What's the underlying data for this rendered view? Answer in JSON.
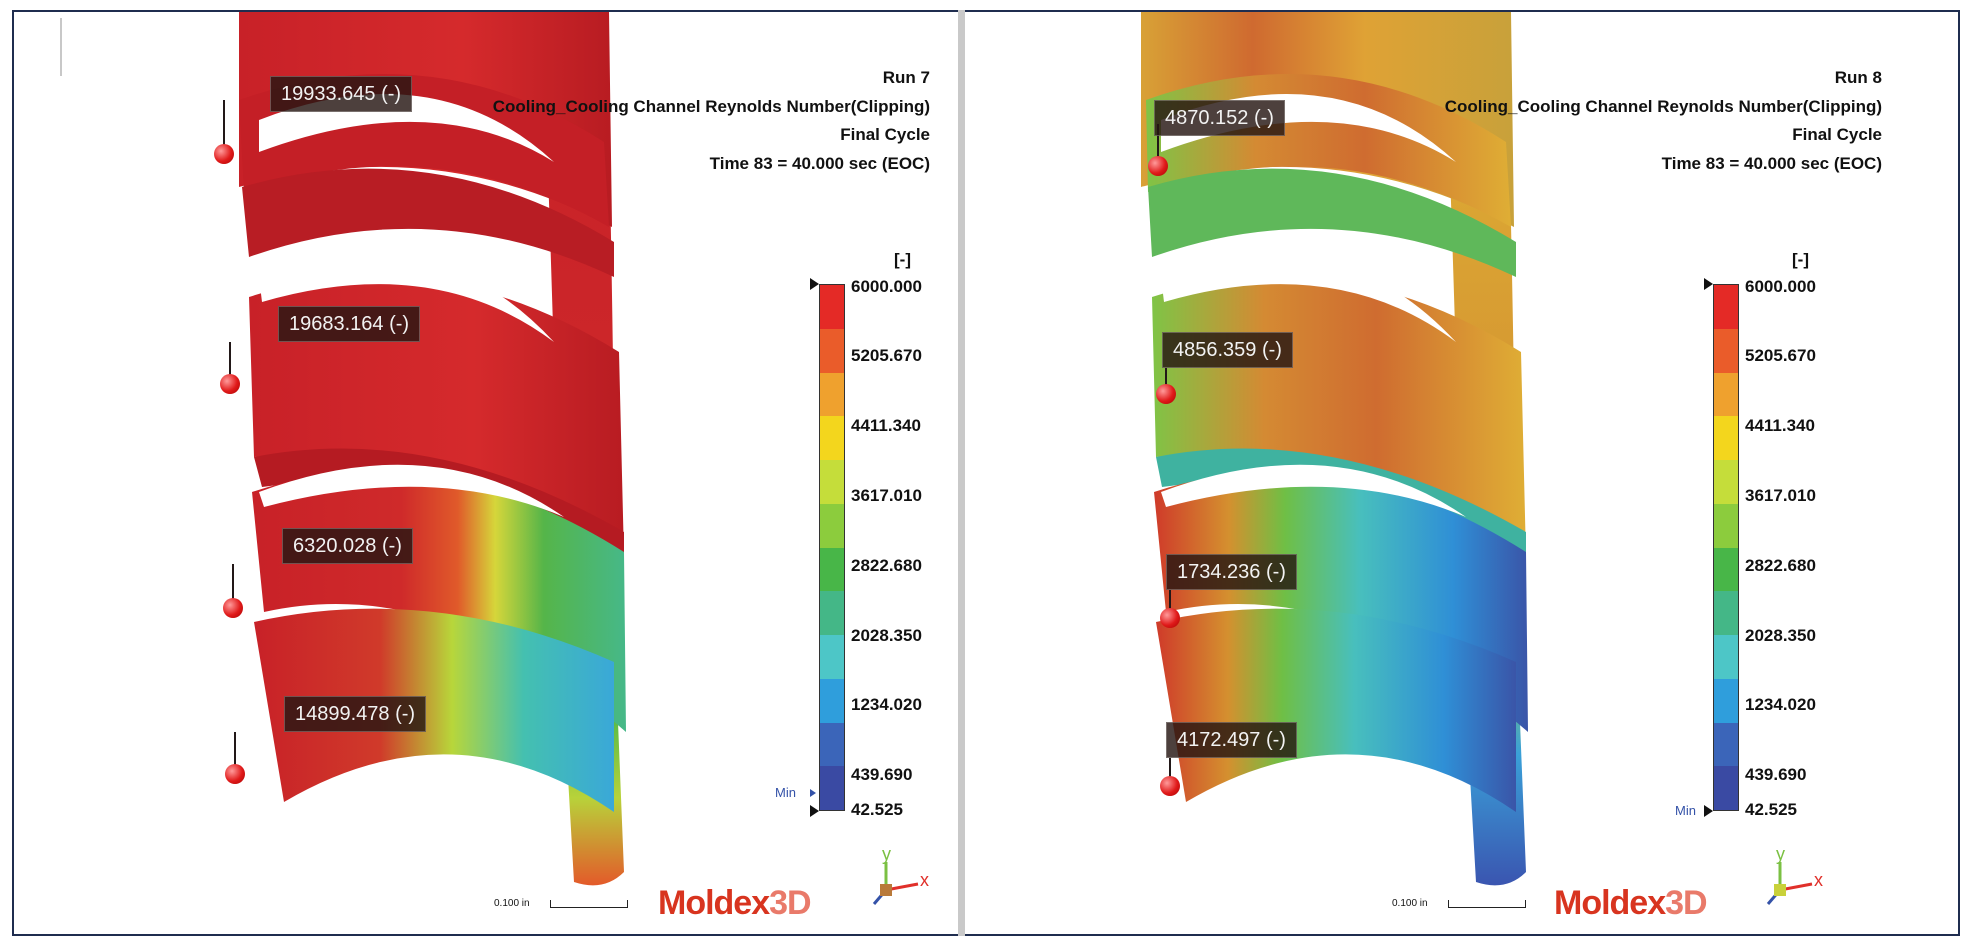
{
  "panels": [
    {
      "id": "left",
      "run": "Run 7",
      "result": "Cooling_Cooling Channel Reynolds Number(Clipping)",
      "cycle": "Final Cycle",
      "time": "Time 83 = 40.000 sec (EOC)",
      "probes": [
        "19933.645 (-)",
        "19683.164 (-)",
        "6320.028 (-)",
        "14899.478 (-)"
      ]
    },
    {
      "id": "right",
      "run": "Run 8",
      "result": "Cooling_Cooling Channel Reynolds Number(Clipping)",
      "cycle": "Final Cycle",
      "time": "Time 83 = 40.000 sec (EOC)",
      "probes": [
        "4870.152 (-)",
        "4856.359 (-)",
        "1734.236 (-)",
        "4172.497 (-)"
      ]
    }
  ],
  "legend": {
    "unit": "[-]",
    "ticks": [
      "6000.000",
      "5205.670",
      "4411.340",
      "3617.010",
      "2822.680",
      "2028.350",
      "1234.020",
      "439.690",
      "42.525"
    ],
    "min_label": "Min",
    "colors": [
      "#e42a26",
      "#ea5c2a",
      "#efa12e",
      "#f3d61d",
      "#c5dd3a",
      "#8ccc3d",
      "#48b648",
      "#44b787",
      "#4dc6c7",
      "#2f9edc",
      "#3b65b9",
      "#3a4aa3"
    ]
  },
  "scale_label": "0.100 in",
  "logo": {
    "part1": "Moldex",
    "part2": "3D"
  },
  "axis": {
    "y": "y",
    "x": "x"
  }
}
